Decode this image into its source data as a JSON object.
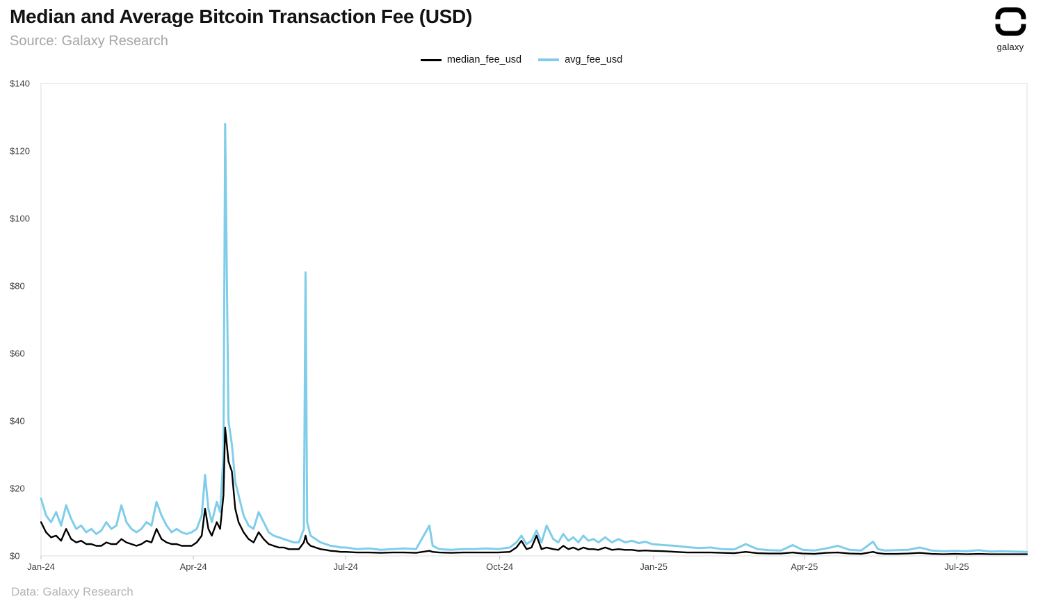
{
  "header": {
    "title": "Median and Average Bitcoin Transaction Fee (USD)",
    "subtitle": "Source: Galaxy Research",
    "brand": "galaxy"
  },
  "footer": {
    "credit": "Data: Galaxy Research"
  },
  "chart_data": {
    "type": "line",
    "title": "Median and Average Bitcoin Transaction Fee (USD)",
    "source": "Galaxy Research",
    "xlabel": "",
    "ylabel": "",
    "ylim": [
      0,
      140
    ],
    "grid": false,
    "legend_position": "top-center",
    "y_ticks": [
      {
        "value": 0,
        "label": "$0"
      },
      {
        "value": 20,
        "label": "$20"
      },
      {
        "value": 40,
        "label": "$40"
      },
      {
        "value": 60,
        "label": "$60"
      },
      {
        "value": 80,
        "label": "$80"
      },
      {
        "value": 100,
        "label": "$100"
      },
      {
        "value": 120,
        "label": "$120"
      },
      {
        "value": 140,
        "label": "$140"
      }
    ],
    "x_ticks": [
      {
        "date": "2024-01-01",
        "label": "Jan-24"
      },
      {
        "date": "2024-04-01",
        "label": "Apr-24"
      },
      {
        "date": "2024-07-01",
        "label": "Jul-24"
      },
      {
        "date": "2024-10-01",
        "label": "Oct-24"
      },
      {
        "date": "2025-01-01",
        "label": "Jan-25"
      },
      {
        "date": "2025-04-01",
        "label": "Apr-25"
      },
      {
        "date": "2025-07-01",
        "label": "Jul-25"
      }
    ],
    "x_range": [
      "2024-01-01",
      "2025-08-12"
    ],
    "x": [
      "2024-01-01",
      "2024-01-04",
      "2024-01-07",
      "2024-01-10",
      "2024-01-13",
      "2024-01-16",
      "2024-01-19",
      "2024-01-22",
      "2024-01-25",
      "2024-01-28",
      "2024-01-31",
      "2024-02-03",
      "2024-02-06",
      "2024-02-09",
      "2024-02-12",
      "2024-02-15",
      "2024-02-18",
      "2024-02-21",
      "2024-02-24",
      "2024-02-27",
      "2024-03-01",
      "2024-03-04",
      "2024-03-07",
      "2024-03-10",
      "2024-03-13",
      "2024-03-16",
      "2024-03-19",
      "2024-03-22",
      "2024-03-25",
      "2024-03-28",
      "2024-03-31",
      "2024-04-03",
      "2024-04-06",
      "2024-04-08",
      "2024-04-10",
      "2024-04-12",
      "2024-04-15",
      "2024-04-17",
      "2024-04-19",
      "2024-04-20",
      "2024-04-22",
      "2024-04-24",
      "2024-04-26",
      "2024-04-28",
      "2024-05-01",
      "2024-05-04",
      "2024-05-07",
      "2024-05-10",
      "2024-05-13",
      "2024-05-16",
      "2024-05-19",
      "2024-05-22",
      "2024-05-25",
      "2024-05-28",
      "2024-05-31",
      "2024-06-03",
      "2024-06-06",
      "2024-06-07",
      "2024-06-08",
      "2024-06-10",
      "2024-06-13",
      "2024-06-16",
      "2024-06-19",
      "2024-06-22",
      "2024-06-25",
      "2024-06-28",
      "2024-07-01",
      "2024-07-08",
      "2024-07-15",
      "2024-07-22",
      "2024-07-29",
      "2024-08-05",
      "2024-08-12",
      "2024-08-20",
      "2024-08-22",
      "2024-08-26",
      "2024-09-02",
      "2024-09-09",
      "2024-09-16",
      "2024-09-23",
      "2024-09-30",
      "2024-10-07",
      "2024-10-11",
      "2024-10-14",
      "2024-10-17",
      "2024-10-20",
      "2024-10-23",
      "2024-10-26",
      "2024-10-29",
      "2024-11-02",
      "2024-11-05",
      "2024-11-08",
      "2024-11-11",
      "2024-11-14",
      "2024-11-17",
      "2024-11-20",
      "2024-11-23",
      "2024-11-26",
      "2024-11-29",
      "2024-12-03",
      "2024-12-07",
      "2024-12-11",
      "2024-12-15",
      "2024-12-19",
      "2024-12-23",
      "2024-12-27",
      "2024-12-31",
      "2025-01-07",
      "2025-01-14",
      "2025-01-21",
      "2025-01-28",
      "2025-02-04",
      "2025-02-11",
      "2025-02-18",
      "2025-02-25",
      "2025-03-04",
      "2025-03-11",
      "2025-03-18",
      "2025-03-25",
      "2025-03-31",
      "2025-04-07",
      "2025-04-14",
      "2025-04-21",
      "2025-04-28",
      "2025-05-05",
      "2025-05-12",
      "2025-05-15",
      "2025-05-19",
      "2025-05-26",
      "2025-06-02",
      "2025-06-09",
      "2025-06-16",
      "2025-06-23",
      "2025-06-30",
      "2025-07-07",
      "2025-07-14",
      "2025-07-21",
      "2025-07-28",
      "2025-08-04",
      "2025-08-12"
    ],
    "series": [
      {
        "name": "median_fee_usd",
        "color": "#000000",
        "values": [
          10,
          7,
          5.5,
          6,
          4.5,
          8,
          5,
          4,
          4.5,
          3.5,
          3.5,
          3,
          3,
          4,
          3.5,
          3.5,
          5,
          4,
          3.5,
          3,
          3.5,
          4.5,
          4,
          8,
          5,
          4,
          3.5,
          3.5,
          3,
          3,
          3,
          4,
          6,
          14,
          8,
          6,
          10,
          8,
          18,
          38,
          28,
          25,
          14,
          10,
          7,
          5,
          4,
          7,
          5,
          3.5,
          3,
          2.5,
          2.5,
          2,
          2,
          2,
          4,
          6,
          4,
          3,
          2.5,
          2,
          1.8,
          1.5,
          1.4,
          1.2,
          1.2,
          1,
          1,
          0.9,
          1,
          1,
          0.9,
          1.5,
          1.2,
          1,
          0.9,
          1,
          1,
          1,
          1,
          1.2,
          2.5,
          4.5,
          2,
          2.5,
          6,
          2,
          2.5,
          2,
          1.8,
          3,
          2,
          2.5,
          1.8,
          2.5,
          2,
          2,
          1.8,
          2.5,
          1.8,
          2,
          1.8,
          1.8,
          1.5,
          1.6,
          1.5,
          1.4,
          1.2,
          1,
          1,
          1,
          0.9,
          0.8,
          1.2,
          0.8,
          0.7,
          0.7,
          1,
          0.7,
          0.6,
          0.9,
          1,
          0.7,
          0.6,
          1.2,
          0.8,
          0.6,
          0.6,
          0.7,
          0.9,
          0.6,
          0.5,
          0.6,
          0.5,
          0.6,
          0.5,
          0.5,
          0.5,
          0.5
        ]
      },
      {
        "name": "avg_fee_usd",
        "color": "#7FCDEA",
        "values": [
          17,
          12,
          10,
          13,
          9,
          15,
          11,
          8,
          9,
          7,
          8,
          6.5,
          7.5,
          10,
          8,
          9,
          15,
          10,
          8,
          7,
          8,
          10,
          9,
          16,
          12,
          9,
          7,
          8,
          7,
          6.5,
          7,
          8,
          12,
          24,
          14,
          10,
          16,
          13,
          30,
          128,
          40,
          33,
          22,
          18,
          12,
          9,
          8,
          13,
          10,
          7,
          6,
          5.5,
          5,
          4.5,
          4,
          4,
          8,
          84,
          10,
          6,
          5,
          4,
          3.5,
          3,
          2.8,
          2.5,
          2.5,
          2,
          2.2,
          1.8,
          2,
          2.2,
          2,
          9,
          3,
          2,
          1.8,
          2,
          2,
          2.2,
          2,
          2.5,
          4,
          6,
          3.5,
          4.5,
          7.5,
          4,
          9,
          5,
          4,
          6.5,
          4.5,
          5.5,
          4,
          6,
          4.5,
          5,
          4,
          5.5,
          4,
          5,
          4,
          4.5,
          3.8,
          4.2,
          3.5,
          3.2,
          3,
          2.6,
          2.3,
          2.5,
          2,
          1.9,
          3.5,
          2,
          1.7,
          1.6,
          3.2,
          1.8,
          1.6,
          2.2,
          3,
          1.8,
          1.6,
          4.2,
          2,
          1.6,
          1.7,
          1.8,
          2.5,
          1.6,
          1.4,
          1.5,
          1.4,
          1.7,
          1.3,
          1.4,
          1.3,
          1.2
        ]
      }
    ]
  }
}
